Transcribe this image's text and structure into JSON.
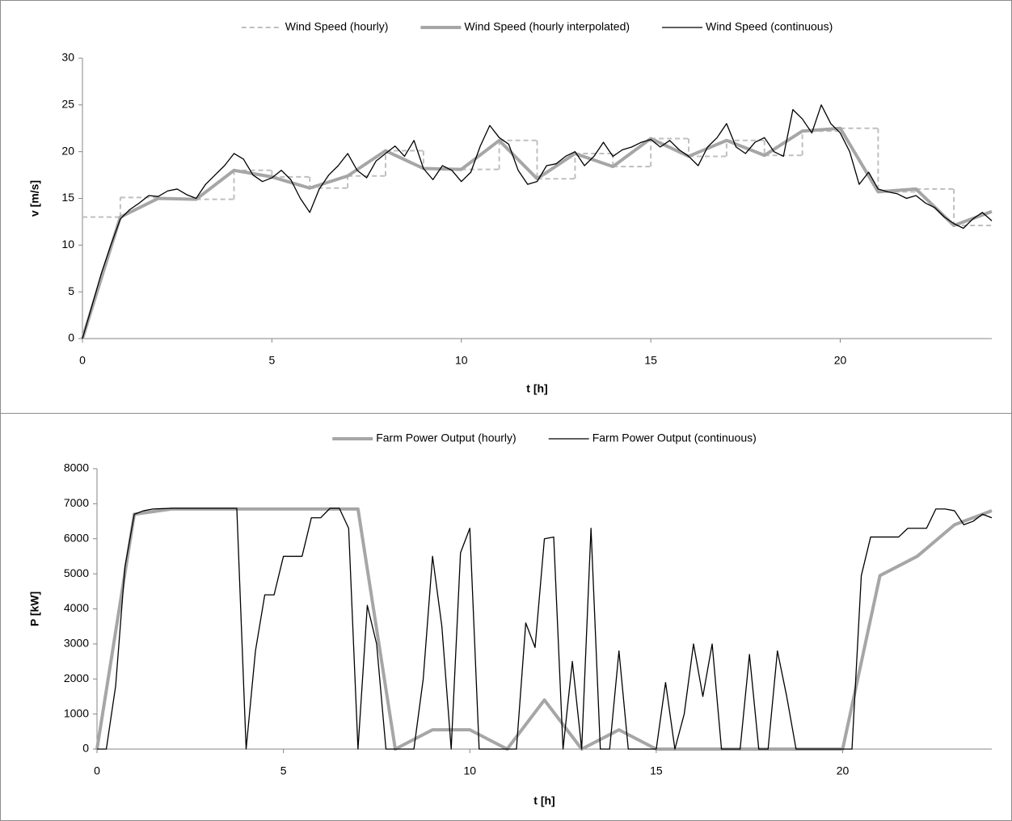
{
  "chart_data": [
    {
      "type": "line",
      "xlabel": "t [h]",
      "ylabel": "v [m/s]",
      "xlim": [
        0,
        24
      ],
      "ylim": [
        0,
        30
      ],
      "xticks": [
        0,
        5,
        10,
        15,
        20
      ],
      "yticks": [
        0,
        5,
        10,
        15,
        20,
        25,
        30
      ],
      "grid": false,
      "legend": "top",
      "series": [
        {
          "name": "Wind Speed (hourly)",
          "color": "#bfbfbf",
          "style": "dashed",
          "step": "post",
          "x": [
            0,
            1,
            2,
            3,
            4,
            5,
            6,
            7,
            8,
            9,
            10,
            11,
            12,
            13,
            14,
            15,
            16,
            17,
            18,
            19,
            20,
            21,
            22,
            23
          ],
          "values": [
            13,
            15.1,
            15,
            14.9,
            18,
            17.3,
            16.1,
            17.4,
            20.1,
            18.2,
            18.1,
            21.2,
            17.1,
            19.8,
            18.4,
            21.4,
            19.5,
            21.2,
            19.6,
            22.2,
            22.5,
            15.7,
            16,
            12.1
          ]
        },
        {
          "name": "Wind Speed (hourly interpolated)",
          "color": "#a6a6a6",
          "style": "thick",
          "x": [
            0,
            1,
            2,
            3,
            4,
            5,
            6,
            7,
            8,
            9,
            10,
            11,
            12,
            13,
            14,
            15,
            16,
            17,
            18,
            19,
            20,
            21,
            22,
            23,
            24
          ],
          "values": [
            0,
            13,
            15,
            14.9,
            18,
            17.3,
            16.1,
            17.4,
            20.1,
            18.2,
            18.1,
            21.2,
            17.1,
            19.8,
            18.4,
            21.4,
            19.5,
            21.2,
            19.6,
            22.2,
            22.5,
            15.7,
            16,
            12.1,
            13.6
          ]
        },
        {
          "name": "Wind Speed (continuous)",
          "color": "#000000",
          "style": "thin",
          "x": [
            0,
            0.25,
            0.5,
            0.75,
            1,
            1.25,
            1.5,
            1.75,
            2,
            2.25,
            2.5,
            2.75,
            3,
            3.25,
            3.5,
            3.75,
            4,
            4.25,
            4.5,
            4.75,
            5,
            5.25,
            5.5,
            5.75,
            6,
            6.25,
            6.5,
            6.75,
            7,
            7.25,
            7.5,
            7.75,
            8,
            8.25,
            8.5,
            8.75,
            9,
            9.25,
            9.5,
            9.75,
            10,
            10.25,
            10.5,
            10.75,
            11,
            11.25,
            11.5,
            11.75,
            12,
            12.25,
            12.5,
            12.75,
            13,
            13.25,
            13.5,
            13.75,
            14,
            14.25,
            14.5,
            14.75,
            15,
            15.25,
            15.5,
            15.75,
            16,
            16.25,
            16.5,
            16.75,
            17,
            17.25,
            17.5,
            17.75,
            18,
            18.25,
            18.5,
            18.75,
            19,
            19.25,
            19.5,
            19.75,
            20,
            20.25,
            20.5,
            20.75,
            21,
            21.25,
            21.5,
            21.75,
            22,
            22.25,
            22.5,
            22.75,
            23,
            23.25,
            23.5,
            23.75,
            24
          ],
          "values": [
            0,
            3.5,
            7,
            10,
            12.8,
            13.8,
            14.5,
            15.3,
            15.2,
            15.8,
            16,
            15.4,
            15,
            16.5,
            17.5,
            18.5,
            19.8,
            19.2,
            17.5,
            16.8,
            17.2,
            18,
            17,
            15,
            13.5,
            16,
            17.5,
            18.5,
            19.8,
            18,
            17.2,
            19,
            19.8,
            20.6,
            19.5,
            21.2,
            18.2,
            17,
            18.5,
            18,
            16.8,
            17.8,
            20.6,
            22.8,
            21.5,
            20.8,
            18,
            16.5,
            16.8,
            18.5,
            18.7,
            19.5,
            20,
            18.5,
            19.5,
            21,
            19.5,
            20.2,
            20.5,
            21,
            21.3,
            20.5,
            21.2,
            20.2,
            19.5,
            18.5,
            20.5,
            21.5,
            23,
            20.5,
            19.8,
            21,
            21.5,
            20,
            19.5,
            24.5,
            23.5,
            22,
            25,
            23,
            22,
            20,
            16.5,
            17.8,
            16,
            15.7,
            15.5,
            15,
            15.3,
            14.5,
            14,
            13,
            12.3,
            11.8,
            12.8,
            13.5,
            12.6
          ]
        }
      ]
    },
    {
      "type": "line",
      "xlabel": "t [h]",
      "ylabel": "P [kW]",
      "xlim": [
        0,
        24
      ],
      "ylim": [
        0,
        8000
      ],
      "xticks": [
        0,
        5,
        10,
        15,
        20
      ],
      "yticks": [
        0,
        1000,
        2000,
        3000,
        4000,
        5000,
        6000,
        7000,
        8000
      ],
      "grid": false,
      "legend": "top",
      "series": [
        {
          "name": "Farm Power Output (hourly)",
          "color": "#a6a6a6",
          "style": "thick",
          "x": [
            0,
            1,
            2,
            3,
            4,
            5,
            6,
            7,
            8,
            9,
            10,
            11,
            12,
            13,
            14,
            15,
            16,
            17,
            18,
            19,
            20,
            21,
            22,
            23,
            24
          ],
          "values": [
            0,
            6700,
            6850,
            6850,
            6850,
            6850,
            6850,
            6850,
            0,
            550,
            550,
            0,
            1400,
            0,
            550,
            0,
            0,
            0,
            0,
            0,
            0,
            4950,
            5500,
            6400,
            6800
          ]
        },
        {
          "name": "Farm Power Output (continuous)",
          "color": "#000000",
          "style": "thin",
          "x": [
            0,
            0.25,
            0.5,
            0.75,
            1,
            1.25,
            1.5,
            1.75,
            2,
            2.25,
            2.5,
            2.75,
            3,
            3.25,
            3.5,
            3.75,
            4,
            4.25,
            4.5,
            4.75,
            5,
            5.25,
            5.5,
            5.75,
            6,
            6.25,
            6.5,
            6.75,
            7,
            7.25,
            7.5,
            7.75,
            8,
            8.25,
            8.5,
            8.75,
            9,
            9.25,
            9.5,
            9.75,
            10,
            10.25,
            10.5,
            10.75,
            11,
            11.25,
            11.5,
            11.75,
            12,
            12.25,
            12.5,
            12.75,
            13,
            13.25,
            13.5,
            13.75,
            14,
            14.25,
            14.5,
            14.75,
            15,
            15.25,
            15.5,
            15.75,
            16,
            16.25,
            16.5,
            16.75,
            17,
            17.25,
            17.5,
            17.75,
            18,
            18.25,
            18.5,
            18.75,
            19,
            19.25,
            19.5,
            19.75,
            20,
            20.25,
            20.5,
            20.75,
            21,
            21.25,
            21.5,
            21.75,
            22,
            22.25,
            22.5,
            22.75,
            23,
            23.25,
            23.5,
            23.75,
            24
          ],
          "values": [
            0,
            0,
            1800,
            5200,
            6700,
            6800,
            6850,
            6860,
            6870,
            6870,
            6870,
            6870,
            6870,
            6870,
            6870,
            6870,
            0,
            2800,
            4400,
            4400,
            5500,
            5500,
            5500,
            6600,
            6600,
            6870,
            6870,
            6300,
            0,
            4100,
            3000,
            0,
            0,
            0,
            0,
            2000,
            5500,
            3500,
            0,
            5600,
            6300,
            0,
            0,
            0,
            0,
            0,
            3600,
            2900,
            6000,
            6050,
            0,
            2500,
            0,
            6300,
            0,
            0,
            2800,
            0,
            0,
            0,
            0,
            1900,
            0,
            1000,
            3000,
            1500,
            3000,
            0,
            0,
            0,
            2700,
            0,
            0,
            2800,
            1500,
            0,
            0,
            0,
            0,
            0,
            0,
            0,
            4950,
            6050,
            6050,
            6050,
            6050,
            6300,
            6300,
            6300,
            6850,
            6850,
            6800,
            6400,
            6500,
            6700,
            6600
          ]
        }
      ]
    }
  ]
}
